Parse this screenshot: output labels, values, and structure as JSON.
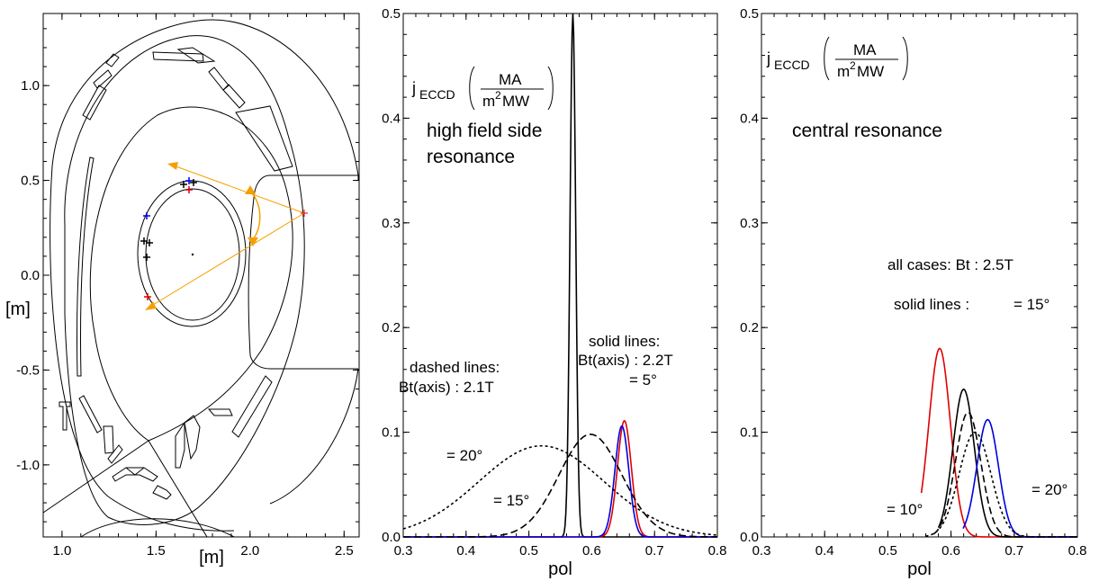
{
  "colors": {
    "red": "#e00000",
    "blue": "#0000e0",
    "black": "#000000",
    "orange": "#f5a000"
  },
  "panel1": {
    "xlabel": "[m]",
    "ylabel": "[m]",
    "xticks": [
      "1.0",
      "1.5",
      "2.0",
      "2.5"
    ],
    "yticks": [
      "1.0",
      "0.5",
      "0.0",
      "-0.5",
      "-1.0"
    ],
    "xlim": [
      0.9,
      2.58
    ],
    "ylim": [
      -1.38,
      1.38
    ]
  },
  "chart_data": [
    {
      "type": "line",
      "title": "",
      "xlabel": "pol",
      "ylabel_main": "j",
      "ylabel_sub": "ECCD",
      "unit_num": "MA",
      "unit_den": "m",
      "unit_sup": "2",
      "unit_den2": "MW",
      "xlim": [
        0.3,
        0.8
      ],
      "ylim": [
        0,
        0.5
      ],
      "xticks": [
        "0.3",
        "0.4",
        "0.5",
        "0.6",
        "0.7",
        "0.8"
      ],
      "yticks": [
        "0.0",
        "0.1",
        "0.2",
        "0.3",
        "0.4",
        "0.5"
      ],
      "annotations": {
        "resonance_line1": "high field side",
        "resonance_line2": "resonance",
        "dashed_title": "dashed lines:",
        "dashed_bt": "Bt(axis) : 2.1T",
        "solid_title": "solid lines:",
        "solid_bt": "Bt(axis) : 2.2T",
        "angle_5": "= 5°",
        "angle_20": "= 20°",
        "angle_15": "= 15°"
      },
      "series": [
        {
          "color": "black",
          "style": "solid",
          "peak_x": 0.57,
          "peak": 0.5,
          "width": 0.0045
        },
        {
          "color": "red",
          "style": "solid",
          "peak_x": 0.652,
          "peak": 0.111,
          "width": 0.011
        },
        {
          "color": "blue",
          "style": "solid",
          "peak_x": 0.648,
          "peak": 0.106,
          "width": 0.011
        },
        {
          "color": "black",
          "style": "dashed",
          "peak_x": 0.598,
          "peak": 0.098,
          "width": 0.05
        },
        {
          "color": "black",
          "style": "dotted",
          "peak_x": 0.52,
          "peak": 0.087,
          "width": 0.1
        }
      ]
    },
    {
      "type": "line",
      "title": "",
      "xlabel": "pol",
      "ylabel_main": "j",
      "ylabel_sub": "ECCD",
      "unit_num": "MA",
      "unit_den": "m",
      "unit_sup": "2",
      "unit_den2": "MW",
      "xlim": [
        0.3,
        0.8
      ],
      "ylim": [
        0,
        0.5
      ],
      "xticks": [
        "0.3",
        "0.4",
        "0.5",
        "0.6",
        "0.7",
        "0.8"
      ],
      "yticks": [
        "0.0",
        "0.1",
        "0.2",
        "0.3",
        "0.4",
        "0.5"
      ],
      "annotations": {
        "resonance": "central resonance",
        "all_cases": "all cases: Bt : 2.5T",
        "solid_lines": "solid lines :",
        "angle_15": "= 15°",
        "angle_20": "= 20°",
        "angle_10": "= 10°"
      },
      "series": [
        {
          "color": "red",
          "style": "solid",
          "peak_x": 0.582,
          "peak": 0.18,
          "width": 0.017,
          "x_start": 0.553
        },
        {
          "color": "black",
          "style": "solid",
          "peak_x": 0.62,
          "peak": 0.141,
          "width": 0.017,
          "x_start": 0.58
        },
        {
          "color": "blue",
          "style": "solid",
          "peak_x": 0.658,
          "peak": 0.112,
          "width": 0.017,
          "x_start": 0.619
        },
        {
          "color": "black",
          "style": "dashed",
          "peak_x": 0.627,
          "peak": 0.119,
          "width": 0.02,
          "x_start": 0.572
        },
        {
          "color": "black",
          "style": "dotted",
          "peak_x": 0.638,
          "peak": 0.1,
          "width": 0.025,
          "x_start": 0.56
        }
      ]
    }
  ]
}
